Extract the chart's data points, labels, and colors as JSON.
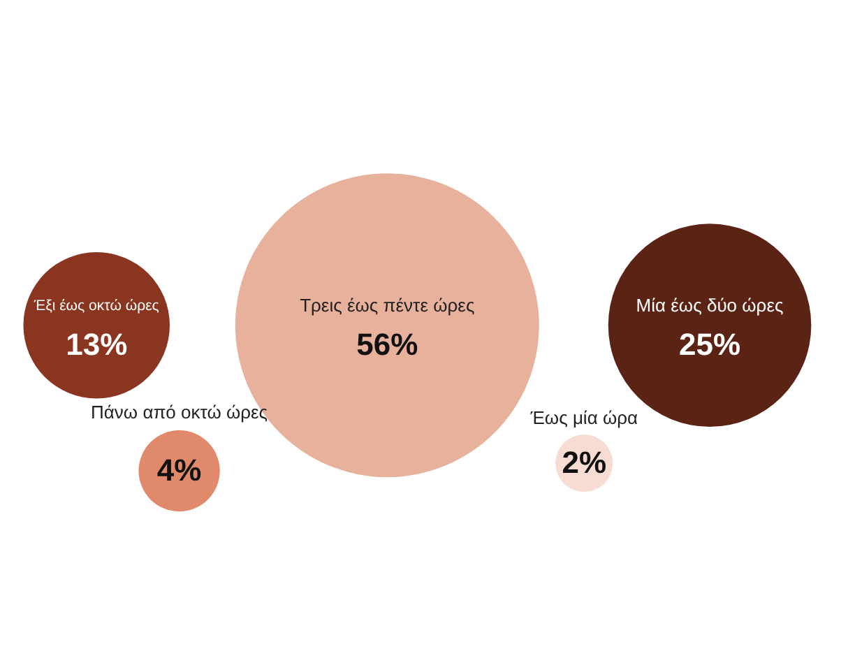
{
  "chart_data": {
    "type": "other",
    "categories": [
      "Έως μία ώρα",
      "Μία έως δύο ώρες",
      "Τρεις έως πέντε ώρες",
      "Έξι έως οκτώ ώρες",
      "Πάνω από οκτώ ώρες"
    ],
    "values": [
      2,
      25,
      56,
      13,
      4
    ],
    "value_labels": [
      "2%",
      "25%",
      "56%",
      "13%",
      "4%"
    ],
    "colors": [
      "#f6dcd3",
      "#5a2313",
      "#e8b19c",
      "#8a3520",
      "#e08a6b"
    ]
  }
}
